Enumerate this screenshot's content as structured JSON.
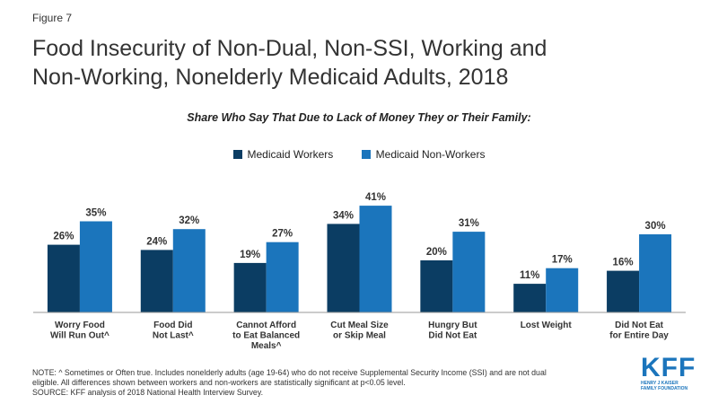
{
  "figure_label": "Figure 7",
  "title_lines": [
    "Food Insecurity of Non-Dual, Non-SSI, Working and",
    "Non-Working, Nonelderly Medicaid Adults, 2018"
  ],
  "note_lines": [
    "NOTE: ^ Sometimes or Often true. Includes nonelderly adults (age 19-64) who do not receive Supplemental Security Income (SSI) and are not dual",
    "eligible. All differences shown between workers and non-workers are statistically significant at p<0.05 level.",
    "SOURCE: KFF analysis of 2018 National Health Interview Survey."
  ],
  "logo": {
    "main": "KFF",
    "sub_lines": [
      "HENRY J KAISER",
      "FAMILY FOUNDATION"
    ]
  },
  "colors": {
    "workers": "#0b3d63",
    "non_workers": "#1b75bc",
    "axis": "#9a9a9a"
  },
  "chart_data": {
    "type": "bar",
    "subtitle": "Share Who Say That Due to Lack of Money They or Their Family:",
    "categories": [
      [
        "Worry Food",
        "Will Run Out^"
      ],
      [
        "Food Did",
        "Not Last^"
      ],
      [
        "Cannot Afford",
        "to Eat Balanced",
        "Meals^"
      ],
      [
        "Cut Meal Size",
        "or Skip Meal"
      ],
      [
        "Hungry But",
        "Did Not Eat"
      ],
      [
        "Lost Weight"
      ],
      [
        "Did Not Eat",
        "for Entire Day"
      ]
    ],
    "series": [
      {
        "name": "Medicaid Workers",
        "values": [
          26,
          24,
          19,
          34,
          20,
          11,
          16
        ]
      },
      {
        "name": "Medicaid Non-Workers",
        "values": [
          35,
          32,
          27,
          41,
          31,
          17,
          30
        ]
      }
    ],
    "value_suffix": "%",
    "ylim": [
      0,
      50
    ],
    "grid": false,
    "legend_position": "top-center"
  }
}
